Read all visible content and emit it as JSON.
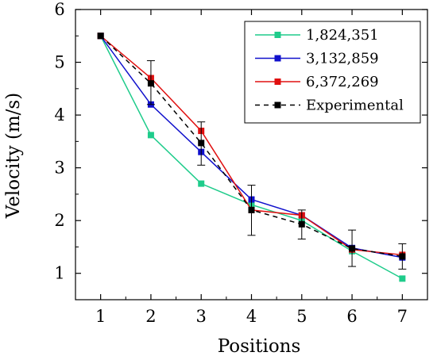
{
  "chart_data": {
    "type": "line",
    "title": "",
    "xlabel": "Positions",
    "ylabel": "Velocity (m/s)",
    "xlim": [
      0.5,
      7.5
    ],
    "ylim": [
      0.5,
      6
    ],
    "x_ticks": [
      1,
      2,
      3,
      4,
      5,
      6,
      7
    ],
    "y_ticks": [
      1,
      2,
      3,
      4,
      5,
      6
    ],
    "grid": false,
    "legend_position": "top-right",
    "x": [
      1,
      2,
      3,
      4,
      5,
      6,
      7
    ],
    "series": [
      {
        "name": "1,824,351",
        "color": "#1fcc8b",
        "marker": "square",
        "dash": "solid",
        "values": [
          5.5,
          3.62,
          2.7,
          2.3,
          2.0,
          1.42,
          0.9
        ]
      },
      {
        "name": "3,132,859",
        "color": "#1010cc",
        "marker": "square",
        "dash": "solid",
        "values": [
          5.5,
          4.2,
          3.3,
          2.4,
          2.1,
          1.48,
          1.3
        ]
      },
      {
        "name": "6,372,269",
        "color": "#e01010",
        "marker": "square",
        "dash": "solid",
        "values": [
          5.5,
          4.7,
          3.7,
          2.2,
          2.1,
          1.45,
          1.35
        ]
      },
      {
        "name": "Experimental",
        "color": "#000000",
        "marker": "square",
        "dash": "dashed",
        "values": [
          5.5,
          4.6,
          3.47,
          2.2,
          1.93,
          1.47,
          1.32
        ],
        "error_low": [
          5.5,
          4.2,
          3.05,
          1.72,
          1.65,
          1.13,
          1.08
        ],
        "error_high": [
          5.5,
          5.03,
          3.87,
          2.67,
          2.2,
          1.82,
          1.56
        ]
      }
    ]
  }
}
